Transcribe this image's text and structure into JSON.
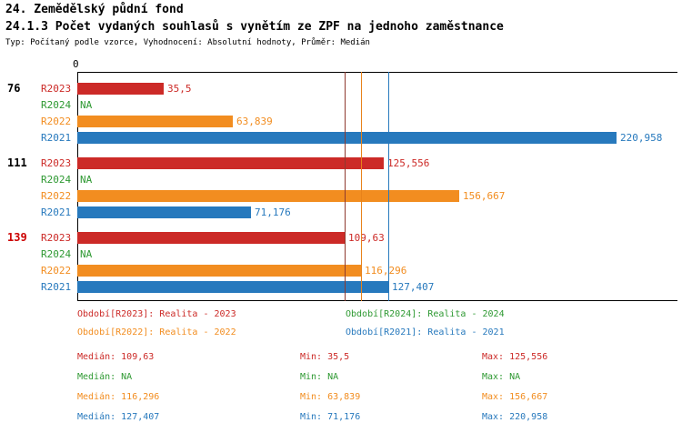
{
  "header": {
    "section_title": "24. Zemědělský půdní fond",
    "indicator_title": "24.1.3 Počet vydaných souhlasů s vynětím ze ZPF na jednoho zaměstnance",
    "subtitle": "Typ: Počítaný podle vzorce, Vyhodnocení: Absolutní hodnoty, Průměr: Medián"
  },
  "colors": {
    "r2023": "#cc2a27",
    "r2024": "#2e9932",
    "r2022": "#f28d20",
    "r2021": "#2779bd",
    "highlight": "#cc0000",
    "axis": "#000000"
  },
  "chart_data": {
    "type": "bar",
    "orientation": "horizontal",
    "title": "24.1.3 Počet vydaných souhlasů s vynětím ze ZPF na jednoho zaměstnance",
    "axis": {
      "origin_label": "0",
      "xlim": [
        0,
        246
      ]
    },
    "series_names": [
      "R2023",
      "R2024",
      "R2022",
      "R2021"
    ],
    "groups": [
      {
        "label": "76",
        "highlight": false,
        "bars": [
          {
            "series": "R2023",
            "value": 35.5,
            "label": "35,5",
            "color_key": "r2023"
          },
          {
            "series": "R2024",
            "value": null,
            "label": "NA",
            "color_key": "r2024"
          },
          {
            "series": "R2022",
            "value": 63.839,
            "label": "63,839",
            "color_key": "r2022"
          },
          {
            "series": "R2021",
            "value": 220.958,
            "label": "220,958",
            "color_key": "r2021"
          }
        ]
      },
      {
        "label": "111",
        "highlight": false,
        "bars": [
          {
            "series": "R2023",
            "value": 125.556,
            "label": "125,556",
            "color_key": "r2023"
          },
          {
            "series": "R2024",
            "value": null,
            "label": "NA",
            "color_key": "r2024"
          },
          {
            "series": "R2022",
            "value": 156.667,
            "label": "156,667",
            "color_key": "r2022"
          },
          {
            "series": "R2021",
            "value": 71.176,
            "label": "71,176",
            "color_key": "r2021"
          }
        ]
      },
      {
        "label": "139",
        "highlight": true,
        "bars": [
          {
            "series": "R2023",
            "value": 109.63,
            "label": "109,63",
            "color_key": "r2023"
          },
          {
            "series": "R2024",
            "value": null,
            "label": "NA",
            "color_key": "r2024"
          },
          {
            "series": "R2022",
            "value": 116.296,
            "label": "116,296",
            "color_key": "r2022"
          },
          {
            "series": "R2021",
            "value": 127.407,
            "label": "127,407",
            "color_key": "r2021"
          }
        ]
      }
    ],
    "reference_lines": [
      {
        "name": "median-R2023",
        "value": 109.63,
        "color": "#8e3a2f"
      },
      {
        "name": "median-R2022",
        "value": 116.296,
        "color": "#e8821a"
      },
      {
        "name": "median-R2021",
        "value": 127.407,
        "color": "#2779bd"
      }
    ]
  },
  "legend": [
    {
      "label": "Období[R2023]: Realita - 2023",
      "color_key": "r2023",
      "col": 0
    },
    {
      "label": "Období[R2024]: Realita - 2024",
      "color_key": "r2024",
      "col": 1
    },
    {
      "label": "Období[R2022]: Realita - 2022",
      "color_key": "r2022",
      "col": 0
    },
    {
      "label": "Období[R2021]: Realita - 2021",
      "color_key": "r2021",
      "col": 1
    }
  ],
  "stats": [
    {
      "color_key": "r2023",
      "median": "Medián: 109,63",
      "min": "Min: 35,5",
      "max": "Max: 125,556"
    },
    {
      "color_key": "r2024",
      "median": "Medián: NA",
      "min": "Min: NA",
      "max": "Max: NA"
    },
    {
      "color_key": "r2022",
      "median": "Medián: 116,296",
      "min": "Min: 63,839",
      "max": "Max: 156,667"
    },
    {
      "color_key": "r2021",
      "median": "Medián: 127,407",
      "min": "Min: 71,176",
      "max": "Max: 220,958"
    }
  ]
}
